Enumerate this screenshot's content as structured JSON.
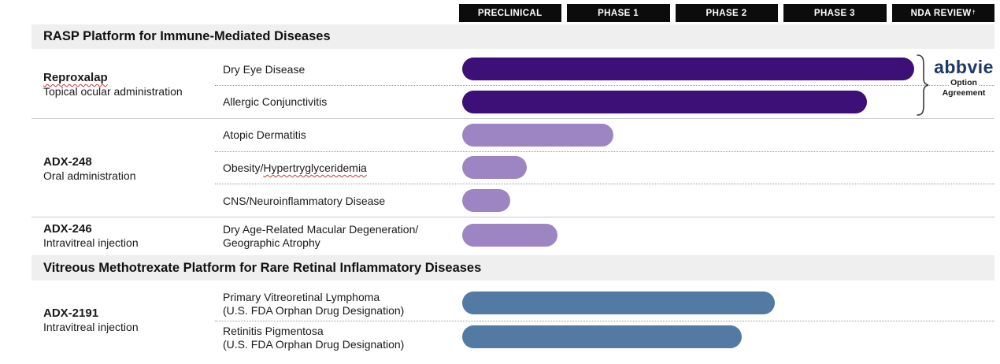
{
  "phases": [
    {
      "label": "PRECLINICAL",
      "sup": ""
    },
    {
      "label": "PHASE 1",
      "sup": ""
    },
    {
      "label": "PHASE 2",
      "sup": ""
    },
    {
      "label": "PHASE 3",
      "sup": ""
    },
    {
      "label": "NDA REVIEW",
      "sup": "†"
    }
  ],
  "sections": [
    {
      "title": "RASP Platform for Immune-Mediated Diseases"
    },
    {
      "title": "Vitreous Methotrexate Platform for Rare Retinal Inflammatory Diseases"
    }
  ],
  "groups": [
    {
      "drug": "Reproxalap",
      "route": "Topical ocular administration"
    },
    {
      "drug": "ADX-248",
      "route": "Oral administration"
    },
    {
      "drug": "ADX-246",
      "route": "Intravitreal injection"
    },
    {
      "drug": "ADX-2191",
      "route": "Intravitreal injection"
    }
  ],
  "partner": {
    "logo": "abbvie",
    "note_line1": "Option",
    "note_line2": "Agreement"
  },
  "colors": {
    "rasp_lead_bar": "#3c1077",
    "rasp_early_bar": "#9c85c2",
    "methotrexate_bar": "#527aa3",
    "phase_box": "#0c0c0c",
    "section_band": "#efefef",
    "abbvie_navy": "#1b3a68",
    "squiggle_red": "#cc3333"
  },
  "chart_data": {
    "type": "bar",
    "orientation": "horizontal",
    "title": "Drug development pipeline",
    "columns": [
      "Preclinical",
      "Phase 1",
      "Phase 2",
      "Phase 3",
      "NDA Review"
    ],
    "column_footnote_marker": "†",
    "axis_units": "development phase (0-5 column scale)",
    "series": [
      {
        "program": "Reproxalap",
        "line1": "Dry Eye Disease",
        "line2": "",
        "stage_reached": "NDA Review",
        "extent_columns": 4.22,
        "color": "#3c1077"
      },
      {
        "program": "Reproxalap",
        "line1": "Allergic Conjunctivitis",
        "line2": "",
        "stage_reached": "Phase 3",
        "extent_columns": 3.78,
        "color": "#3c1077"
      },
      {
        "program": "ADX-248",
        "line1": "Atopic Dermatitis",
        "line2": "",
        "stage_reached": "Phase 1",
        "extent_columns": 1.41,
        "color": "#9c85c2"
      },
      {
        "program": "ADX-248",
        "line1_pre": "Obesity/",
        "line1_squiggle": "Hypertryglyceridemia",
        "line2": "",
        "stage_reached": "Preclinical",
        "extent_columns": 0.6,
        "color": "#9c85c2"
      },
      {
        "program": "ADX-248",
        "line1": "CNS/Neuroinflammatory Disease",
        "line2": "",
        "stage_reached": "Preclinical",
        "extent_columns": 0.45,
        "color": "#9c85c2"
      },
      {
        "program": "ADX-246",
        "line1": "Dry Age-Related Macular Degeneration/",
        "line2": "Geographic Atrophy",
        "stage_reached": "Preclinical",
        "extent_columns": 0.89,
        "color": "#9c85c2"
      },
      {
        "program": "ADX-2191",
        "line1": "Primary Vitreoretinal Lymphoma",
        "line2": "(U.S. FDA Orphan Drug Designation)",
        "stage_reached": "Phase 2",
        "extent_columns": 2.92,
        "color": "#527aa3"
      },
      {
        "program": "ADX-2191",
        "line1": "Retinitis Pigmentosa",
        "line2": "(U.S. FDA Orphan Drug Designation)",
        "stage_reached": "Phase 2",
        "extent_columns": 2.61,
        "color": "#527aa3"
      }
    ]
  }
}
